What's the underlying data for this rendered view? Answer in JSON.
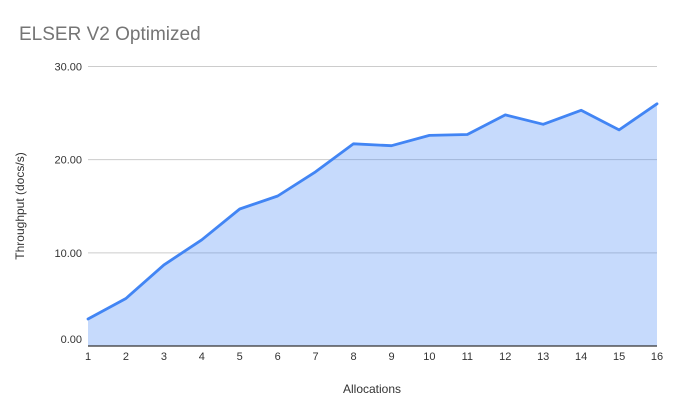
{
  "chart_data": {
    "type": "area",
    "title": "ELSER V2 Optimized",
    "xlabel": "Allocations",
    "ylabel": "Throughput (docs/s)",
    "x": [
      1,
      2,
      3,
      4,
      5,
      6,
      7,
      8,
      9,
      10,
      11,
      12,
      13,
      14,
      15,
      16
    ],
    "x_tick_labels": [
      "1",
      "2",
      "3",
      "4",
      "5",
      "6",
      "7",
      "8",
      "9",
      "10",
      "11",
      "12",
      "13",
      "14",
      "15",
      "16"
    ],
    "series": [
      {
        "name": "Throughput (docs/s)",
        "values": [
          2.9,
          5.1,
          8.7,
          11.4,
          14.7,
          16.1,
          18.7,
          21.7,
          21.5,
          22.6,
          22.7,
          24.8,
          23.8,
          25.3,
          23.2,
          26.0
        ]
      }
    ],
    "xlim": [
      1,
      16
    ],
    "ylim": [
      0,
      30
    ],
    "y_ticks": [
      {
        "value": 0,
        "label": "0.00"
      },
      {
        "value": 10,
        "label": "10.00"
      },
      {
        "value": 20,
        "label": "20.00"
      },
      {
        "value": 30,
        "label": "30.00"
      }
    ],
    "grid": "horizontal",
    "legend": "none",
    "colors": {
      "line": "#4285f4",
      "fill": "rgba(66,133,244,0.30)",
      "gridline": "#cccccc",
      "axis": "#333333",
      "title": "#757575",
      "tick": "#333333",
      "background": "#ffffff"
    }
  }
}
